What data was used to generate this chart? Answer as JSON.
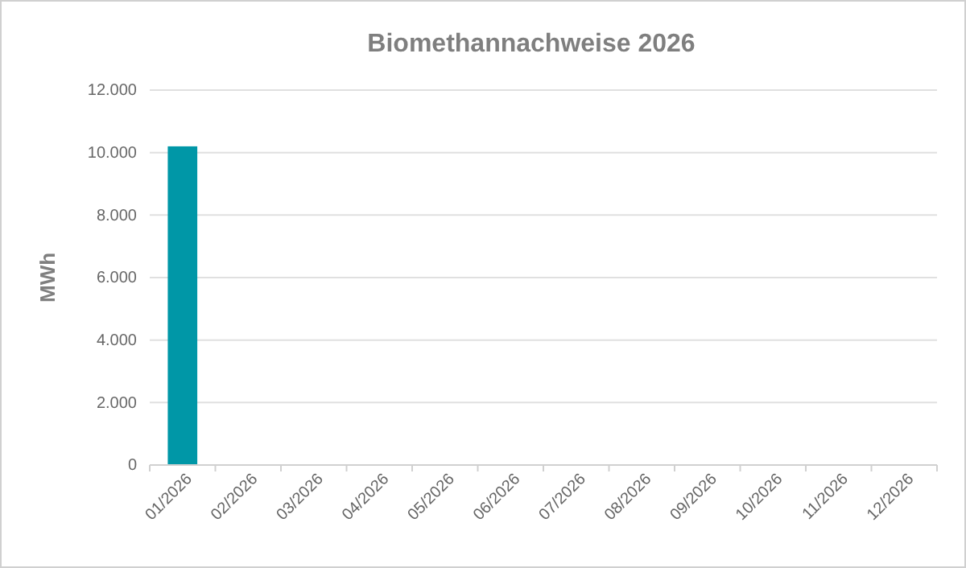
{
  "chart_data": {
    "type": "bar",
    "title": "Biomethannachweise 2026",
    "ylabel": "MWh",
    "categories": [
      "01/2026",
      "02/2026",
      "03/2026",
      "04/2026",
      "05/2026",
      "06/2026",
      "07/2026",
      "08/2026",
      "09/2026",
      "10/2026",
      "11/2026",
      "12/2026"
    ],
    "values": [
      10200,
      null,
      null,
      null,
      null,
      null,
      null,
      null,
      null,
      null,
      null,
      null
    ],
    "color": "#0097a7",
    "ylim": [
      0,
      12000
    ],
    "yticks": [
      {
        "value": 0,
        "label": "0"
      },
      {
        "value": 2000,
        "label": "2.000"
      },
      {
        "value": 4000,
        "label": "4.000"
      },
      {
        "value": 6000,
        "label": "6.000"
      },
      {
        "value": 8000,
        "label": "8.000"
      },
      {
        "value": 10000,
        "label": "10.000"
      },
      {
        "value": 12000,
        "label": "12.000"
      }
    ],
    "grid": "y"
  }
}
